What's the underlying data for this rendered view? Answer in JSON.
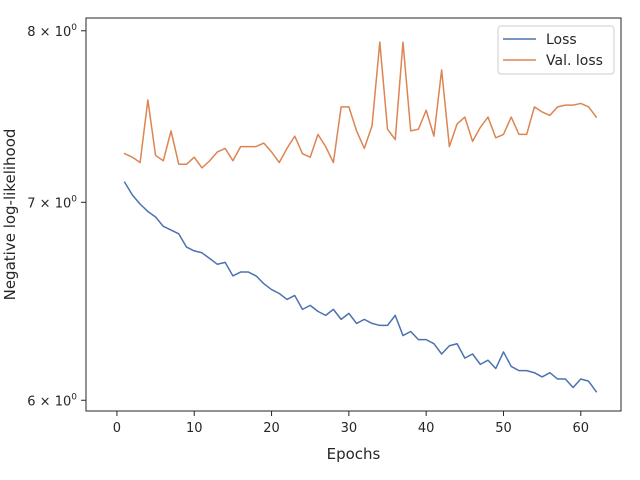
{
  "chart_data": {
    "type": "line",
    "title": "",
    "xlabel": "Epochs",
    "ylabel": "Negative log-likelihood",
    "yscale": "log",
    "xlim": [
      -4,
      65.2
    ],
    "ylim": [
      5.95,
      8.08
    ],
    "xticks": [
      0,
      10,
      20,
      30,
      40,
      50,
      60
    ],
    "xtick_labels": [
      "0",
      "10",
      "20",
      "30",
      "40",
      "50",
      "60"
    ],
    "yticks": [
      6,
      7,
      8
    ],
    "ytick_base": [
      "6 × 10",
      "7 × 10",
      "8 × 10"
    ],
    "ytick_exp": [
      "0",
      "0",
      "0"
    ],
    "legend_position": "top-right",
    "grid": false,
    "x": [
      1,
      2,
      3,
      4,
      5,
      6,
      7,
      8,
      9,
      10,
      11,
      12,
      13,
      14,
      15,
      16,
      17,
      18,
      19,
      20,
      21,
      22,
      23,
      24,
      25,
      26,
      27,
      28,
      29,
      30,
      31,
      32,
      33,
      34,
      35,
      36,
      37,
      38,
      39,
      40,
      41,
      42,
      43,
      44,
      45,
      46,
      47,
      48,
      49,
      50,
      51,
      52,
      53,
      54,
      55,
      56,
      57,
      58,
      59,
      60,
      61,
      62
    ],
    "series": [
      {
        "name": "Loss",
        "color": "#4c72b0",
        "values": [
          7.11,
          7.04,
          6.99,
          6.95,
          6.92,
          6.87,
          6.85,
          6.83,
          6.76,
          6.74,
          6.73,
          6.7,
          6.67,
          6.68,
          6.61,
          6.63,
          6.63,
          6.61,
          6.57,
          6.54,
          6.52,
          6.49,
          6.51,
          6.44,
          6.46,
          6.43,
          6.41,
          6.44,
          6.39,
          6.42,
          6.37,
          6.39,
          6.37,
          6.36,
          6.36,
          6.41,
          6.31,
          6.33,
          6.29,
          6.29,
          6.27,
          6.22,
          6.26,
          6.27,
          6.2,
          6.22,
          6.17,
          6.19,
          6.15,
          6.23,
          6.16,
          6.14,
          6.14,
          6.13,
          6.11,
          6.13,
          6.1,
          6.1,
          6.06,
          6.1,
          6.09,
          6.04
        ]
      },
      {
        "name": "Val. loss",
        "color": "#dd8452",
        "values": [
          7.27,
          7.25,
          7.22,
          7.58,
          7.26,
          7.23,
          7.4,
          7.21,
          7.21,
          7.25,
          7.19,
          7.23,
          7.28,
          7.3,
          7.23,
          7.31,
          7.31,
          7.31,
          7.33,
          7.28,
          7.22,
          7.3,
          7.37,
          7.27,
          7.25,
          7.38,
          7.31,
          7.22,
          7.54,
          7.54,
          7.4,
          7.3,
          7.43,
          7.93,
          7.41,
          7.35,
          7.93,
          7.4,
          7.41,
          7.52,
          7.37,
          7.76,
          7.31,
          7.44,
          7.48,
          7.34,
          7.42,
          7.48,
          7.36,
          7.38,
          7.48,
          7.38,
          7.38,
          7.54,
          7.51,
          7.49,
          7.54,
          7.55,
          7.55,
          7.56,
          7.54,
          7.48
        ]
      }
    ]
  }
}
